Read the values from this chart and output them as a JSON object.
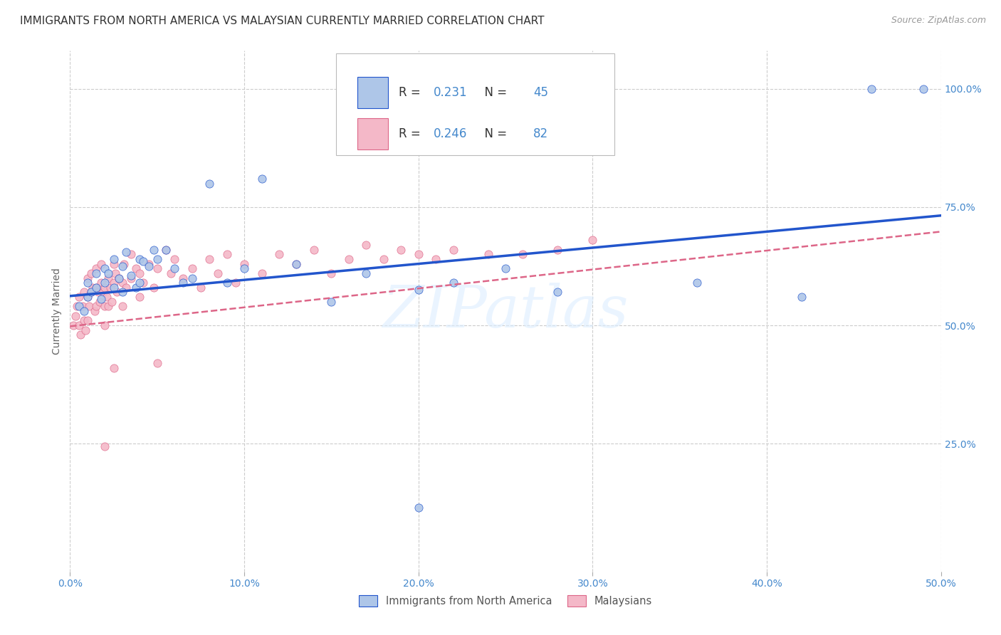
{
  "title": "IMMIGRANTS FROM NORTH AMERICA VS MALAYSIAN CURRENTLY MARRIED CORRELATION CHART",
  "source": "Source: ZipAtlas.com",
  "ylabel": "Currently Married",
  "blue_color": "#aec6e8",
  "pink_color": "#f4b8c8",
  "line_blue": "#2255cc",
  "line_pink": "#dd6688",
  "legend_R1": "0.231",
  "legend_N1": "45",
  "legend_R2": "0.246",
  "legend_N2": "82",
  "legend_label1": "Immigrants from North America",
  "legend_label2": "Malaysians",
  "watermark": "ZIPatlas",
  "xlim": [
    0.0,
    0.5
  ],
  "ylim": [
    -0.02,
    1.08
  ],
  "title_fontsize": 11,
  "axis_label_fontsize": 10,
  "tick_fontsize": 10,
  "bg_color": "#ffffff",
  "grid_color": "#cccccc",
  "blue_x": [
    0.005,
    0.008,
    0.01,
    0.01,
    0.012,
    0.015,
    0.015,
    0.018,
    0.02,
    0.02,
    0.022,
    0.025,
    0.025,
    0.028,
    0.03,
    0.03,
    0.032,
    0.035,
    0.038,
    0.04,
    0.04,
    0.042,
    0.045,
    0.048,
    0.05,
    0.055,
    0.06,
    0.065,
    0.07,
    0.08,
    0.09,
    0.1,
    0.11,
    0.13,
    0.15,
    0.17,
    0.2,
    0.22,
    0.25,
    0.28,
    0.2,
    0.36,
    0.42,
    0.46,
    0.49
  ],
  "blue_y": [
    0.54,
    0.53,
    0.56,
    0.59,
    0.57,
    0.61,
    0.58,
    0.555,
    0.59,
    0.62,
    0.61,
    0.64,
    0.58,
    0.6,
    0.57,
    0.625,
    0.655,
    0.605,
    0.58,
    0.64,
    0.59,
    0.635,
    0.625,
    0.66,
    0.64,
    0.66,
    0.62,
    0.59,
    0.6,
    0.8,
    0.59,
    0.62,
    0.81,
    0.63,
    0.55,
    0.61,
    0.575,
    0.59,
    0.62,
    0.57,
    0.115,
    0.59,
    0.56,
    1.0,
    1.0
  ],
  "pink_x": [
    0.002,
    0.003,
    0.004,
    0.005,
    0.005,
    0.006,
    0.007,
    0.008,
    0.008,
    0.009,
    0.01,
    0.01,
    0.01,
    0.011,
    0.012,
    0.012,
    0.013,
    0.014,
    0.015,
    0.015,
    0.015,
    0.016,
    0.017,
    0.018,
    0.018,
    0.019,
    0.02,
    0.02,
    0.02,
    0.021,
    0.022,
    0.022,
    0.023,
    0.024,
    0.025,
    0.025,
    0.026,
    0.027,
    0.028,
    0.03,
    0.03,
    0.031,
    0.032,
    0.035,
    0.035,
    0.038,
    0.04,
    0.04,
    0.042,
    0.045,
    0.048,
    0.05,
    0.055,
    0.058,
    0.06,
    0.065,
    0.07,
    0.075,
    0.08,
    0.085,
    0.09,
    0.095,
    0.1,
    0.11,
    0.12,
    0.13,
    0.14,
    0.15,
    0.16,
    0.17,
    0.18,
    0.19,
    0.2,
    0.21,
    0.22,
    0.24,
    0.26,
    0.28,
    0.3,
    0.02,
    0.025,
    0.05
  ],
  "pink_y": [
    0.5,
    0.52,
    0.54,
    0.5,
    0.56,
    0.48,
    0.54,
    0.51,
    0.57,
    0.49,
    0.51,
    0.56,
    0.6,
    0.54,
    0.57,
    0.61,
    0.58,
    0.53,
    0.54,
    0.58,
    0.62,
    0.57,
    0.55,
    0.59,
    0.63,
    0.57,
    0.5,
    0.54,
    0.58,
    0.56,
    0.6,
    0.54,
    0.58,
    0.55,
    0.59,
    0.63,
    0.61,
    0.57,
    0.6,
    0.54,
    0.59,
    0.63,
    0.58,
    0.65,
    0.6,
    0.62,
    0.56,
    0.61,
    0.59,
    0.63,
    0.58,
    0.62,
    0.66,
    0.61,
    0.64,
    0.6,
    0.62,
    0.58,
    0.64,
    0.61,
    0.65,
    0.59,
    0.63,
    0.61,
    0.65,
    0.63,
    0.66,
    0.61,
    0.64,
    0.67,
    0.64,
    0.66,
    0.65,
    0.64,
    0.66,
    0.65,
    0.65,
    0.66,
    0.68,
    0.245,
    0.41,
    0.42
  ]
}
